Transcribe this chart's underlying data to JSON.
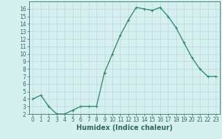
{
  "x": [
    0,
    1,
    2,
    3,
    4,
    5,
    6,
    7,
    8,
    9,
    10,
    11,
    12,
    13,
    14,
    15,
    16,
    17,
    18,
    19,
    20,
    21,
    22,
    23
  ],
  "y": [
    4,
    4.5,
    3,
    2,
    2,
    2.5,
    3,
    3,
    3,
    7.5,
    10,
    12.5,
    14.5,
    16.2,
    16,
    15.8,
    16.2,
    15,
    13.5,
    11.5,
    9.5,
    8,
    7,
    7
  ],
  "line_color": "#2e8b72",
  "marker": "+",
  "bg_color": "#d6f0f0",
  "grid_color": "#b8d8d8",
  "xlabel": "Humidex (Indice chaleur)",
  "xlabel_fontsize": 7,
  "xlabel_color": "#2e6b5e",
  "tick_color": "#2e6b5e",
  "ylim": [
    2,
    17
  ],
  "xlim": [
    -0.5,
    23.5
  ],
  "yticks": [
    2,
    3,
    4,
    5,
    6,
    7,
    8,
    9,
    10,
    11,
    12,
    13,
    14,
    15,
    16
  ],
  "xticks": [
    0,
    1,
    2,
    3,
    4,
    5,
    6,
    7,
    8,
    9,
    10,
    11,
    12,
    13,
    14,
    15,
    16,
    17,
    18,
    19,
    20,
    21,
    22,
    23
  ],
  "spine_color": "#2e6b5e",
  "line_width": 1.0,
  "marker_size": 3
}
